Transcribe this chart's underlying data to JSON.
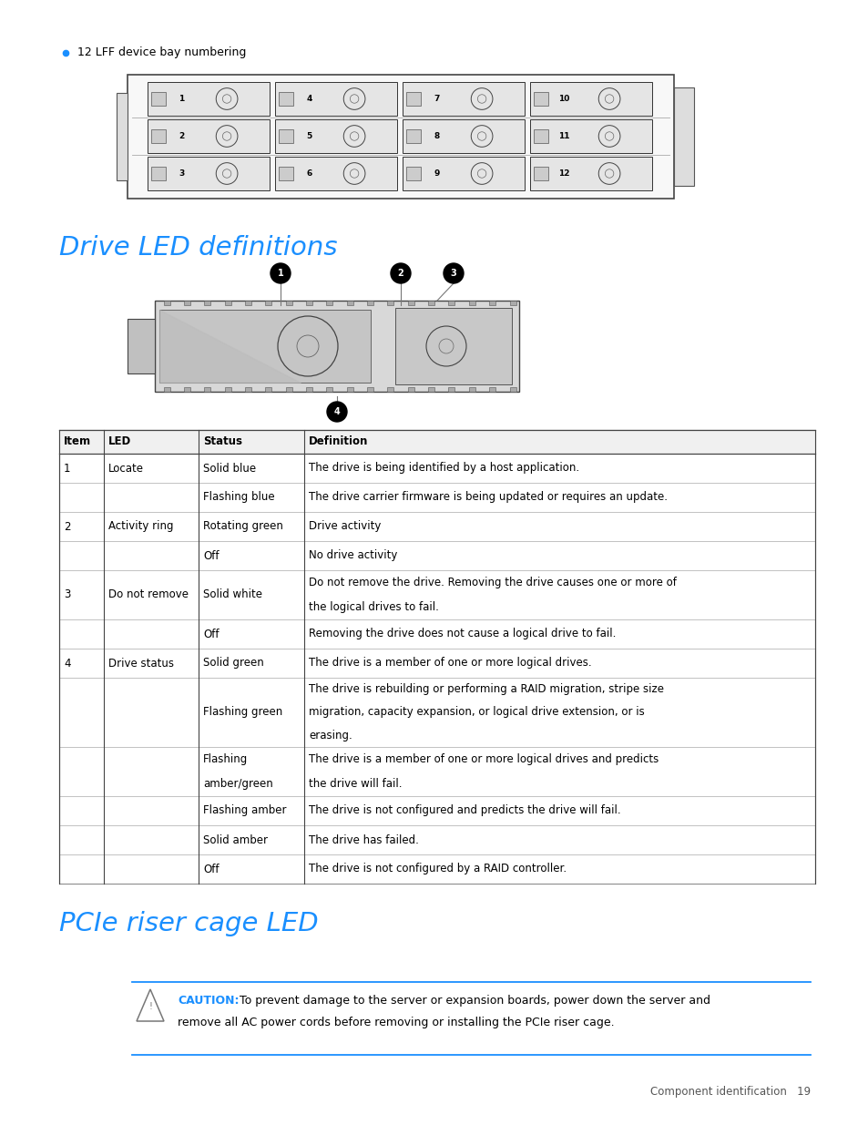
{
  "bullet_text": "12 LFF device bay numbering",
  "section1_title": "Drive LED definitions",
  "section2_title": "PCIe riser cage LED",
  "table_headers": [
    "Item",
    "LED",
    "Status",
    "Definition"
  ],
  "table_rows": [
    [
      "1",
      "Locate",
      "Solid blue",
      "The drive is being identified by a host application."
    ],
    [
      "",
      "",
      "Flashing blue",
      "The drive carrier firmware is being updated or requires an update."
    ],
    [
      "2",
      "Activity ring",
      "Rotating green",
      "Drive activity"
    ],
    [
      "",
      "",
      "Off",
      "No drive activity"
    ],
    [
      "3",
      "Do not remove",
      "Solid white",
      "Do not remove the drive. Removing the drive causes one or more of\nthe logical drives to fail."
    ],
    [
      "",
      "",
      "Off",
      "Removing the drive does not cause a logical drive to fail."
    ],
    [
      "4",
      "Drive status",
      "Solid green",
      "The drive is a member of one or more logical drives."
    ],
    [
      "",
      "",
      "Flashing green",
      "The drive is rebuilding or performing a RAID migration, stripe size\nmigration, capacity expansion, or logical drive extension, or is\nerasing."
    ],
    [
      "",
      "",
      "Flashing\namber/green",
      "The drive is a member of one or more logical drives and predicts\nthe drive will fail."
    ],
    [
      "",
      "",
      "Flashing amber",
      "The drive is not configured and predicts the drive will fail."
    ],
    [
      "",
      "",
      "Solid amber",
      "The drive has failed."
    ],
    [
      "",
      "",
      "Off",
      "The drive is not configured by a RAID controller."
    ]
  ],
  "caution_label": "CAUTION:",
  "caution_body": "  To prevent damage to the server or expansion boards, power down the server and\nremove all AC power cords before removing or installing the PCIe riser cage.",
  "footer_text": "Component identification   19",
  "blue_color": "#1a8fff",
  "bg_color": "#FFFFFF",
  "text_color": "#000000"
}
